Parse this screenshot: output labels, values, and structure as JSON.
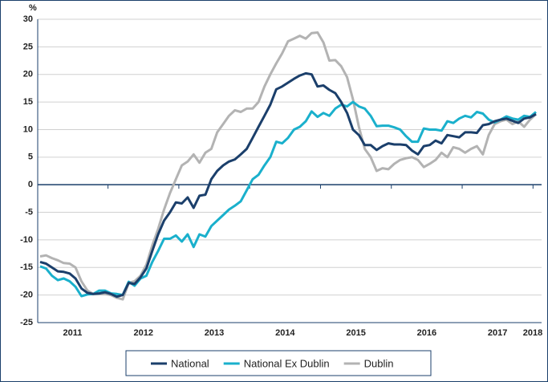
{
  "chart_data": {
    "type": "line",
    "y_unit": "%",
    "categories": [
      null,
      null,
      null,
      null,
      null,
      null,
      "2011",
      null,
      null,
      null,
      null,
      null,
      null,
      null,
      null,
      null,
      null,
      null,
      "2012",
      null,
      null,
      null,
      null,
      null,
      null,
      null,
      null,
      null,
      null,
      null,
      "2013",
      null,
      null,
      null,
      null,
      null,
      null,
      null,
      null,
      null,
      null,
      null,
      "2014",
      null,
      null,
      null,
      null,
      null,
      null,
      null,
      null,
      null,
      null,
      null,
      "2015",
      null,
      null,
      null,
      null,
      null,
      null,
      null,
      null,
      null,
      null,
      null,
      "2016",
      null,
      null,
      null,
      null,
      null,
      null,
      null,
      null,
      null,
      null,
      null,
      "2017",
      null,
      null,
      null,
      null,
      null,
      "2018"
    ],
    "series": [
      {
        "name": "National",
        "color": "#1b3f6b",
        "values": [
          -14,
          -14.3,
          -15,
          -15.7,
          -15.8,
          -16.1,
          -17,
          -18.8,
          -19.6,
          -19.8,
          -19.7,
          -19.5,
          -19.8,
          -20.3,
          -20,
          -17.8,
          -18,
          -16.8,
          -15.2,
          -12,
          -9,
          -6.5,
          -5,
          -3.2,
          -3.4,
          -2.3,
          -4.2,
          -2,
          -1.8,
          1,
          2.5,
          3.5,
          4.2,
          4.6,
          5.5,
          6.5,
          8.5,
          10.5,
          12.5,
          14.5,
          17.3,
          17.8,
          18.5,
          19.2,
          19.8,
          20.2,
          20,
          17.8,
          18,
          17.2,
          16.6,
          15,
          13,
          10,
          9,
          7.2,
          7.2,
          6.3,
          7,
          7.5,
          7.3,
          7.3,
          7.2,
          6.2,
          5.5,
          7,
          7.2,
          8,
          7.5,
          9,
          8.8,
          8.6,
          9.5,
          9.5,
          9.4,
          10.8,
          11,
          11.5,
          11.8,
          12,
          11.6,
          11.2,
          12,
          12.2,
          12.8
        ]
      },
      {
        "name": "National Ex Dublin",
        "color": "#1ab0cc",
        "values": [
          -14.8,
          -15.2,
          -16.5,
          -17.3,
          -17,
          -17.5,
          -18.5,
          -20.2,
          -19.9,
          -19.8,
          -19.2,
          -19.2,
          -19.7,
          -19.8,
          -20,
          -17.6,
          -18.3,
          -17,
          -16.5,
          -14,
          -12,
          -9.8,
          -9.8,
          -9.2,
          -10.3,
          -9,
          -11.3,
          -9,
          -9.4,
          -7.5,
          -6.5,
          -5.5,
          -4.5,
          -3.8,
          -3,
          -1,
          1,
          1.8,
          3.5,
          5,
          7.8,
          7.5,
          8.5,
          10,
          10.5,
          11.5,
          13.3,
          12.3,
          13,
          12.5,
          13.8,
          14.5,
          14.2,
          15,
          14.2,
          13.8,
          12.5,
          10.6,
          10.7,
          10.7,
          10.4,
          10,
          8.8,
          7.8,
          7.8,
          10.2,
          10,
          10,
          9.8,
          11.5,
          11.2,
          12,
          12.5,
          12.2,
          13.2,
          12.9,
          11.8,
          11.3,
          11.8,
          12.4,
          12,
          11.8,
          12.5,
          12.3,
          13.2
        ]
      },
      {
        "name": "Dublin",
        "color": "#b3b3b3",
        "values": [
          -13,
          -12.8,
          -13.3,
          -13.7,
          -14.2,
          -14.3,
          -15,
          -17.5,
          -19.2,
          -19.8,
          -19.8,
          -19.8,
          -20,
          -20.5,
          -20.8,
          -17.8,
          -17.5,
          -16.5,
          -14.5,
          -11,
          -8,
          -4.5,
          -1.5,
          1,
          3.5,
          4.2,
          5.5,
          4,
          5.8,
          6.5,
          9.5,
          11,
          12.5,
          13.5,
          13.2,
          13.8,
          13.8,
          15,
          17.8,
          20,
          22,
          23.8,
          26,
          26.5,
          27,
          26.5,
          27.5,
          27.6,
          25.8,
          22.5,
          22.6,
          21.5,
          19.5,
          15.5,
          10.5,
          6.5,
          5,
          2.5,
          3,
          2.8,
          3.8,
          4.5,
          4.8,
          5,
          4.5,
          3.2,
          3.8,
          4.5,
          5.8,
          5,
          6.8,
          6.5,
          5.8,
          6.5,
          7,
          5.5,
          9,
          11,
          11.5,
          11.8,
          11,
          11.5,
          10.5,
          11.8,
          12.8
        ]
      }
    ],
    "ylim": [
      -25,
      30
    ],
    "yticks": [
      -25,
      -20,
      -15,
      -10,
      -5,
      0,
      5,
      10,
      15,
      20,
      25,
      30
    ],
    "grid": true,
    "legend": "bottom"
  }
}
